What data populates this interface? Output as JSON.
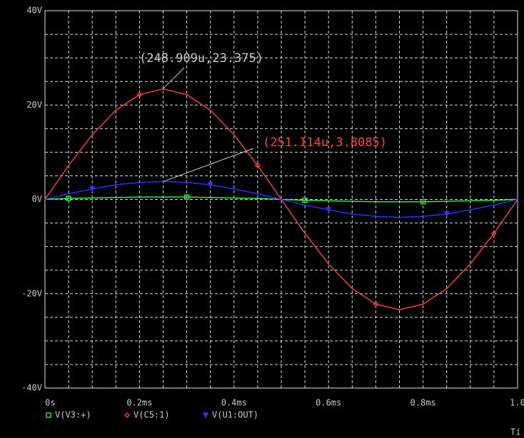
{
  "chart_data": {
    "type": "line",
    "xlim": [
      0,
      1.0
    ],
    "ylim": [
      -40,
      40
    ],
    "xticks": [
      {
        "value": 0,
        "label": "0s"
      },
      {
        "value": 0.2,
        "label": "0.2ms"
      },
      {
        "value": 0.4,
        "label": "0.4ms"
      },
      {
        "value": 0.6,
        "label": "0.6ms"
      },
      {
        "value": 0.8,
        "label": "0.8ms"
      },
      {
        "value": 1.0,
        "label": "1.0"
      }
    ],
    "yticks": [
      {
        "value": 40,
        "label": "40V"
      },
      {
        "value": 20,
        "label": "20V"
      },
      {
        "value": 0,
        "label": "0V"
      },
      {
        "value": -20,
        "label": "-20V"
      },
      {
        "value": -40,
        "label": "-40V"
      }
    ],
    "xminorticks": [
      0.05,
      0.1,
      0.15,
      0.25,
      0.3,
      0.35,
      0.45,
      0.5,
      0.55,
      0.65,
      0.7,
      0.75,
      0.85,
      0.9,
      0.95
    ],
    "yminorticks": [
      35,
      30,
      25,
      15,
      10,
      5,
      -5,
      -10,
      -15,
      -25,
      -30,
      -35
    ],
    "grid": true,
    "xlabel": "Ti",
    "x": [
      0,
      0.05,
      0.1,
      0.15,
      0.2,
      0.25,
      0.3,
      0.35,
      0.4,
      0.45,
      0.5,
      0.55,
      0.6,
      0.65,
      0.7,
      0.75,
      0.8,
      0.85,
      0.9,
      0.95,
      1.0
    ],
    "series": [
      {
        "name": "V(V3:+)",
        "color": "#33ff33",
        "marker": "square",
        "values": [
          0,
          0.2,
          0.3,
          0.4,
          0.5,
          0.5,
          0.5,
          0.4,
          0.3,
          0.2,
          0,
          -0.2,
          -0.3,
          -0.4,
          -0.5,
          -0.5,
          -0.5,
          -0.4,
          -0.3,
          -0.2,
          0
        ]
      },
      {
        "name": "V(C5:1)",
        "color": "#ff4040",
        "marker": "diamond",
        "values": [
          0,
          7.2,
          13.7,
          18.9,
          22.2,
          23.4,
          22.2,
          18.9,
          13.7,
          7.2,
          0,
          -7.2,
          -13.7,
          -18.9,
          -22.2,
          -23.4,
          -22.2,
          -18.9,
          -13.7,
          -7.2,
          0
        ]
      },
      {
        "name": "V(U1:OUT)",
        "color": "#3030ff",
        "marker": "triangle",
        "values": [
          0,
          1.2,
          2.2,
          3.1,
          3.6,
          3.8,
          3.6,
          3.1,
          2.2,
          1.2,
          0,
          -1.2,
          -2.2,
          -3.1,
          -3.6,
          -3.8,
          -3.6,
          -3.1,
          -2.2,
          -1.2,
          0
        ]
      }
    ],
    "annotations": [
      {
        "text": "(248.909u,23.375)",
        "x": 0.248909,
        "y": 23.375,
        "color": "#c8c8c8"
      },
      {
        "text": "(251.114u,3.8085)",
        "x": 0.251114,
        "y": 3.8085,
        "color": "#ff4040"
      }
    ]
  }
}
